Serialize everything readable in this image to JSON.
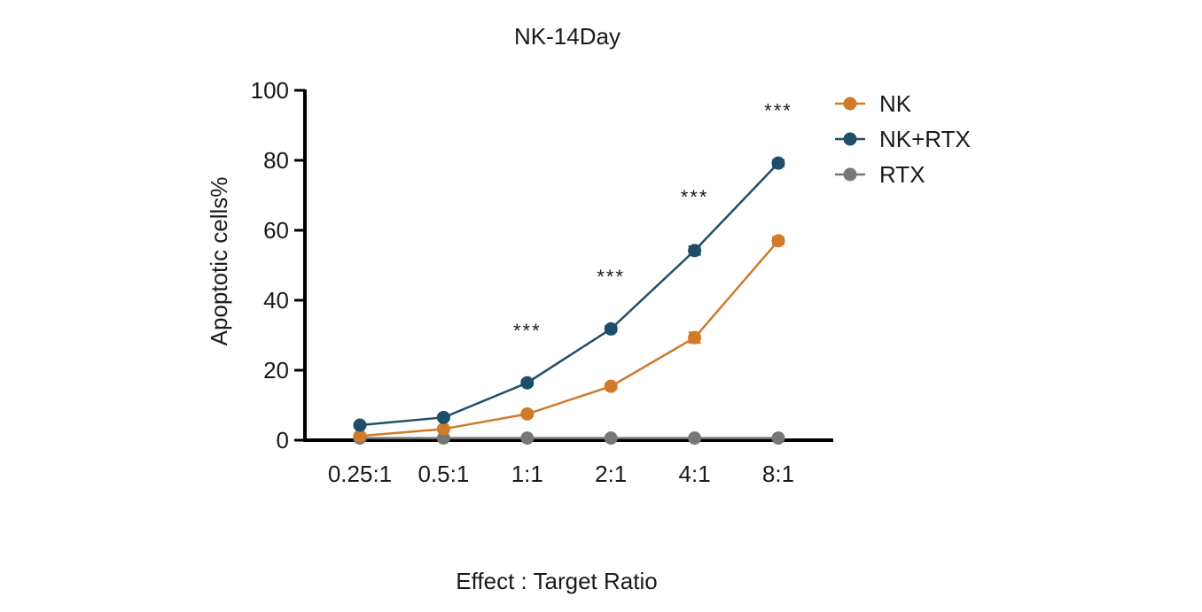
{
  "chart_data": {
    "type": "line",
    "title": "NK-14Day",
    "xlabel": "Effect : Target Ratio",
    "ylabel": "Apoptotic cells%",
    "categories": [
      "0.25:1",
      "0.5:1",
      "1:1",
      "2:1",
      "4:1",
      "8:1"
    ],
    "ylim": [
      0,
      100
    ],
    "yticks": [
      0,
      20,
      40,
      60,
      80,
      100
    ],
    "series": [
      {
        "name": "NK",
        "color": "#d07a2a",
        "values": [
          1.2,
          3.2,
          7.5,
          15.4,
          29.3,
          57.0
        ],
        "errors": [
          0.5,
          0.5,
          0.6,
          0.8,
          1.5,
          1.0
        ]
      },
      {
        "name": "NK+RTX",
        "color": "#1e4f6a",
        "values": [
          4.3,
          6.5,
          16.4,
          31.8,
          54.2,
          79.2
        ],
        "errors": [
          0.5,
          0.6,
          0.8,
          0.8,
          1.2,
          0.9
        ]
      },
      {
        "name": "RTX",
        "color": "#777777",
        "values": [
          0.6,
          0.6,
          0.6,
          0.6,
          0.6,
          0.6
        ],
        "errors": [
          0,
          0,
          0,
          0,
          0,
          0
        ]
      }
    ],
    "annotations": [
      {
        "category": "1:1",
        "text": "***"
      },
      {
        "category": "2:1",
        "text": "***"
      },
      {
        "category": "4:1",
        "text": "***"
      },
      {
        "category": "8:1",
        "text": "***"
      }
    ],
    "legend_position": "top-right",
    "grid": false
  }
}
